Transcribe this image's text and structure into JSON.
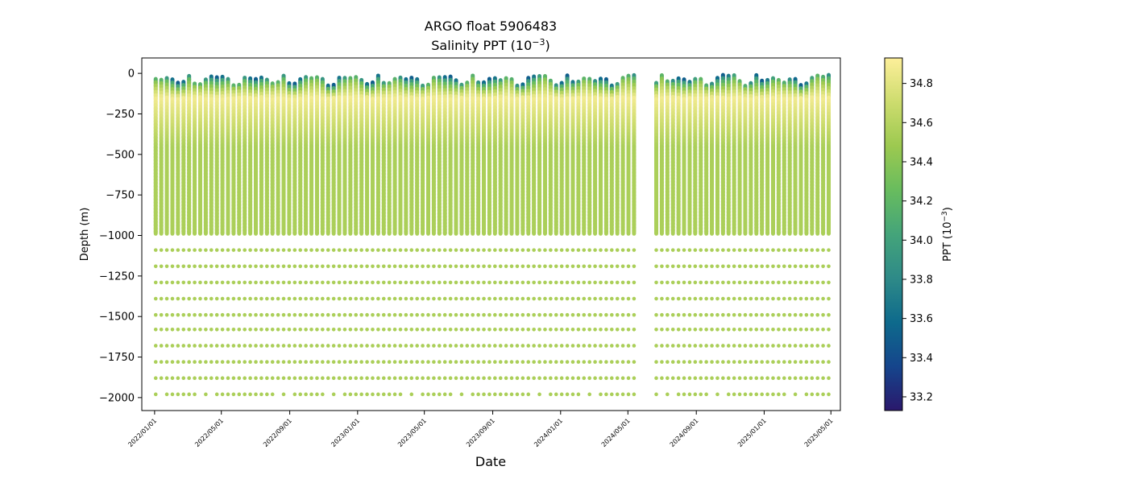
{
  "chart_data": {
    "type": "scatter",
    "title": "ARGO float 5906483",
    "subtitle": "Salinity PPT (10",
    "subtitle_exp": "−3",
    "subtitle_close": ")",
    "xlabel": "Date",
    "ylabel": "Depth (m)",
    "x_axis": {
      "type": "date",
      "range": [
        "2021-12-09",
        "2025-05-18"
      ],
      "ticks": [
        "2022/01/01",
        "2022/05/01",
        "2022/09/01",
        "2023/01/01",
        "2023/05/01",
        "2023/09/01",
        "2024/01/01",
        "2024/05/01",
        "2024/09/01",
        "2025/01/01",
        "2025/05/01"
      ]
    },
    "y_axis": {
      "range": [
        -2080,
        95
      ],
      "ticks": [
        0,
        -250,
        -500,
        -750,
        -1000,
        -1250,
        -1500,
        -1750,
        -2000
      ],
      "tick_labels": [
        "0",
        "−250",
        "−500",
        "−750",
        "−1000",
        "−1250",
        "−1500",
        "−1750",
        "−2000"
      ]
    },
    "colorbar": {
      "label": "PPT (10",
      "label_exp": "−3",
      "label_close": ")",
      "range": [
        33.13,
        34.93
      ],
      "ticks": [
        33.2,
        33.4,
        33.6,
        33.8,
        34.0,
        34.2,
        34.4,
        34.6,
        34.8
      ],
      "tick_labels": [
        "33.2",
        "33.4",
        "33.6",
        "33.8",
        "34.0",
        "34.2",
        "34.4",
        "34.6",
        "34.8"
      ],
      "colormap": "haline",
      "colors": [
        "#2a186c",
        "#15458c",
        "#0e6a8c",
        "#2e8a88",
        "#44a47a",
        "#68bc5e",
        "#9cc950",
        "#cddc6e",
        "#fdef9a"
      ]
    },
    "profiles": {
      "start_date": "2022-01-03",
      "end_date": "2025-04-28",
      "interval_days": 10,
      "gap": [
        "2024-05-12",
        "2024-06-15"
      ],
      "deep_levels_m": [
        -990,
        -1090,
        -1190,
        -1290,
        -1390,
        -1490,
        -1580,
        -1680,
        -1780,
        -1880,
        -1980
      ],
      "deep_salinity": 34.55,
      "surface_salinity_range": [
        33.5,
        34.2
      ],
      "salinity_at_150m": 34.88,
      "salinity_below_400m": 34.55
    }
  }
}
